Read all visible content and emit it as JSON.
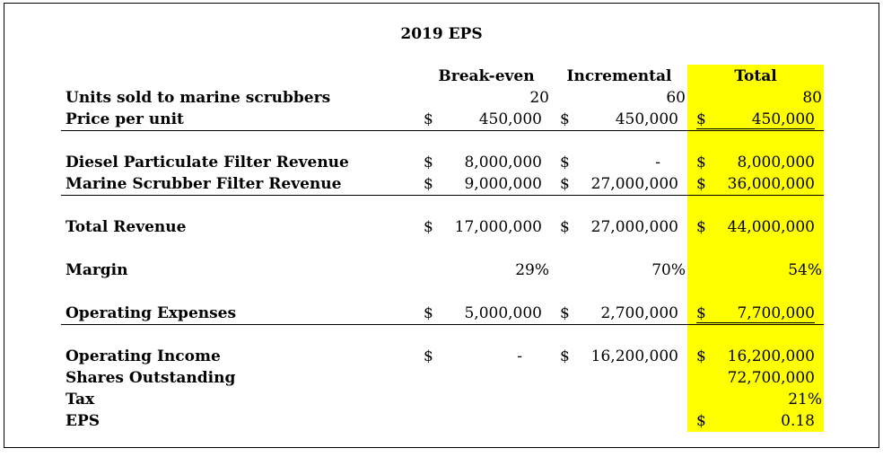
{
  "title": "2019 EPS",
  "headers": {
    "breakeven": "Break-even",
    "incremental": "Incremental",
    "total": "Total"
  },
  "dollar": "$",
  "rows": {
    "units": {
      "label": "Units sold to marine scrubbers",
      "breakeven": "20",
      "incremental": "60",
      "total": "80"
    },
    "price": {
      "label": "Price per unit",
      "breakeven": "450,000",
      "incremental": "450,000",
      "total": "450,000"
    },
    "dpf": {
      "label": "Diesel Particulate Filter Revenue",
      "breakeven": "8,000,000",
      "incremental": "-",
      "total": "8,000,000"
    },
    "msf": {
      "label": "Marine Scrubber Filter Revenue",
      "breakeven": "9,000,000",
      "incremental": "27,000,000",
      "total": "36,000,000"
    },
    "total_revenue": {
      "label": "Total Revenue",
      "breakeven": "17,000,000",
      "incremental": "27,000,000",
      "total": "44,000,000"
    },
    "margin": {
      "label": "Margin",
      "breakeven": "29%",
      "incremental": "70%",
      "total": "54%"
    },
    "opex": {
      "label": "Operating Expenses",
      "breakeven": "5,000,000",
      "incremental": "2,700,000",
      "total": "7,700,000"
    },
    "opinc": {
      "label": "Operating Income",
      "breakeven": "-",
      "incremental": "16,200,000",
      "total": "16,200,000"
    },
    "shares": {
      "label": "Shares Outstanding",
      "total": "72,700,000"
    },
    "tax": {
      "label": "Tax",
      "total": "21%"
    },
    "eps": {
      "label": "EPS",
      "total": "0.18"
    }
  },
  "colors": {
    "highlight": "#ffff00"
  }
}
